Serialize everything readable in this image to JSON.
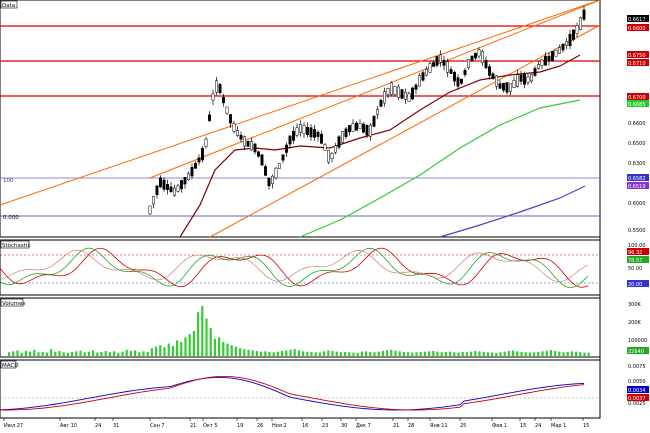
{
  "panels": {
    "price": {
      "title": "Data",
      "fib_labels": [
        "100",
        "0.000"
      ],
      "axis_ticks": [
        "0.6600",
        "0.6500",
        "0.6300",
        "0.6000",
        "0.5500"
      ],
      "price_tags": [
        {
          "text": "0.6617",
          "bg": "#000000"
        },
        {
          "text": "0.6600",
          "bg": "#cc0000"
        },
        {
          "text": "0.6750",
          "bg": "#cc0000"
        },
        {
          "text": "0.6710",
          "bg": "#cc0000"
        },
        {
          "text": "0.6700",
          "bg": "#cc0000"
        },
        {
          "text": "0.6685",
          "bg": "#22cc22"
        },
        {
          "text": "0.6582",
          "bg": "#3333cc"
        },
        {
          "text": "0.6519",
          "bg": "#8833cc"
        }
      ]
    },
    "stochastic": {
      "title": "Stochastic",
      "axis_ticks": [
        "100.00",
        "50.00"
      ],
      "price_tags": [
        {
          "text": "96.32",
          "bg": "#cc0000"
        },
        {
          "text": "78.57",
          "bg": "#22aa22"
        },
        {
          "text": "20.00",
          "bg": "#3333cc"
        }
      ]
    },
    "volume": {
      "title": "Volumes",
      "axis_ticks": [
        "300K",
        "200K",
        "100000"
      ],
      "price_tags": [
        {
          "text": "22640",
          "bg": "#22aa22"
        }
      ],
      "values": [
        12,
        15,
        18,
        10,
        16,
        14,
        20,
        12,
        13,
        11,
        22,
        14,
        16,
        12,
        10,
        13,
        15,
        17,
        12,
        14,
        18,
        11,
        13,
        16,
        12,
        15,
        10,
        14,
        20,
        16,
        18,
        12,
        15,
        13,
        25,
        30,
        35,
        28,
        40,
        32,
        50,
        45,
        60,
        70,
        80,
        140,
        160,
        120,
        90,
        55,
        60,
        45,
        40,
        35,
        30,
        25,
        22,
        20,
        18,
        16,
        14,
        15,
        13,
        12,
        14,
        16,
        18,
        20,
        22,
        18,
        15,
        14,
        13,
        12,
        11,
        15,
        18,
        16,
        14,
        12,
        13,
        12,
        11,
        10,
        14,
        15,
        13,
        12,
        14,
        16,
        18,
        20,
        17,
        15,
        13,
        12,
        11,
        12,
        13,
        14,
        15,
        16,
        14,
        12,
        13,
        14,
        12,
        11,
        13,
        12,
        14,
        16,
        15,
        13,
        12,
        11,
        10,
        12,
        14,
        16,
        18,
        15,
        13,
        12,
        11,
        12,
        13,
        15,
        17,
        19,
        16,
        14,
        12,
        13,
        15,
        14,
        12,
        11,
        10,
        12,
        13,
        14
      ]
    },
    "macd": {
      "title": "MACD",
      "axis_ticks": [
        "0.0075",
        "0.0050",
        "0.0025"
      ],
      "price_tags": [
        {
          "text": "0.0034",
          "bg": "#0000cc"
        },
        {
          "text": "0.0037",
          "bg": "#cc0000"
        }
      ]
    }
  },
  "time_axis": {
    "labels": [
      "Июл 27",
      "Авг 10",
      "24",
      "31",
      "Сен 7",
      "21",
      "Окт 5",
      "19",
      "26",
      "Ноя 2",
      "16",
      "23",
      "30",
      "Дек 7",
      "21",
      "28",
      "Янв 11",
      "25",
      "Фев 1",
      "15",
      "24",
      "Мар 1",
      "15"
    ]
  },
  "colors": {
    "channel": "#ff6600",
    "support_resistance": "#dd0000",
    "sma_short": "#800000",
    "sma_mid": "#33cc33",
    "sma_long": "#6633cc",
    "fib_line": "#3333aa",
    "candle_up": "#ffffff",
    "candle_down": "#000000",
    "volume_bar": "#33cc33",
    "macd_main": "#0000cc",
    "macd_signal": "#cc0000"
  }
}
